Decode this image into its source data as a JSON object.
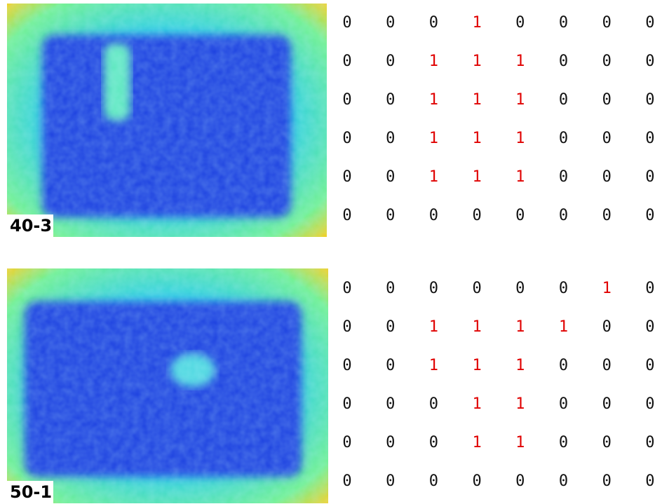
{
  "panels": [
    {
      "label": "40-3",
      "grid": [
        [
          0,
          0,
          0,
          1,
          0,
          0,
          0,
          0
        ],
        [
          0,
          0,
          1,
          1,
          1,
          0,
          0,
          0
        ],
        [
          0,
          0,
          1,
          1,
          1,
          0,
          0,
          0
        ],
        [
          0,
          0,
          1,
          1,
          1,
          0,
          0,
          0
        ],
        [
          0,
          0,
          1,
          1,
          1,
          0,
          0,
          0
        ],
        [
          0,
          0,
          0,
          0,
          0,
          0,
          0,
          0
        ]
      ]
    },
    {
      "label": "50-1",
      "grid": [
        [
          0,
          0,
          0,
          0,
          0,
          0,
          1,
          0
        ],
        [
          0,
          0,
          1,
          1,
          1,
          1,
          0,
          0
        ],
        [
          0,
          0,
          1,
          1,
          1,
          0,
          0,
          0
        ],
        [
          0,
          0,
          0,
          1,
          1,
          0,
          0,
          0
        ],
        [
          0,
          0,
          0,
          1,
          1,
          0,
          0,
          0
        ],
        [
          0,
          0,
          0,
          0,
          0,
          0,
          0,
          0
        ]
      ]
    }
  ]
}
